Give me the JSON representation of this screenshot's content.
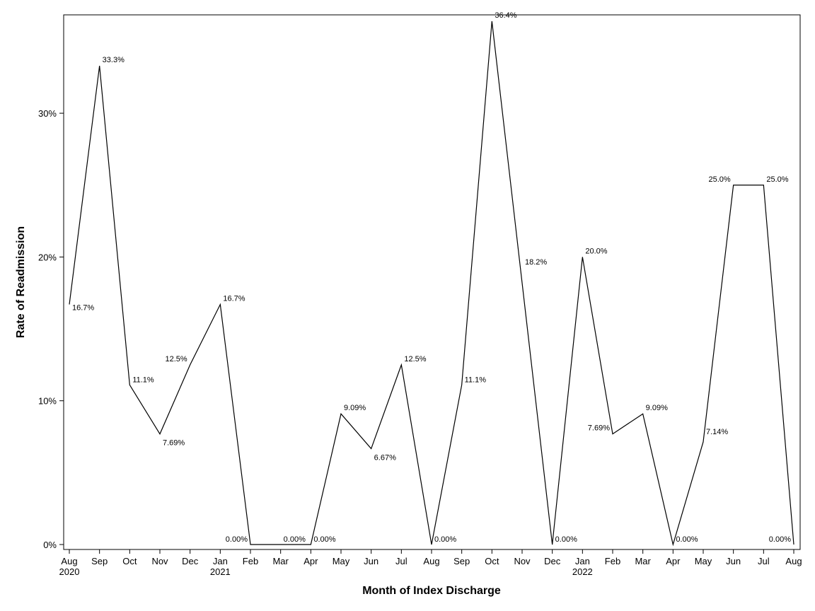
{
  "chart_data": {
    "type": "line",
    "xlabel": "Month of Index Discharge",
    "ylabel": "Rate of Readmission",
    "ylim": [
      0,
      36.4
    ],
    "y_ticks": [
      {
        "value": 0,
        "label": "0%"
      },
      {
        "value": 10,
        "label": "10%"
      },
      {
        "value": 20,
        "label": "20%"
      },
      {
        "value": 30,
        "label": "30%"
      }
    ],
    "grid": false,
    "x": [
      "Aug 2020",
      "Sep 2020",
      "Oct 2020",
      "Nov 2020",
      "Dec 2020",
      "Jan 2021",
      "Feb 2021",
      "Mar 2021",
      "Apr 2021",
      "May 2021",
      "Jun 2021",
      "Jul 2021",
      "Aug 2021",
      "Sep 2021",
      "Oct 2021",
      "Nov 2021",
      "Dec 2021",
      "Jan 2022",
      "Feb 2022",
      "Mar 2022",
      "Apr 2022",
      "May 2022",
      "Jun 2022",
      "Jul 2022",
      "Aug 2022"
    ],
    "x_ticks": [
      {
        "month": "Aug",
        "year": "2020"
      },
      {
        "month": "Sep",
        "year": ""
      },
      {
        "month": "Oct",
        "year": ""
      },
      {
        "month": "Nov",
        "year": ""
      },
      {
        "month": "Dec",
        "year": ""
      },
      {
        "month": "Jan",
        "year": "2021"
      },
      {
        "month": "Feb",
        "year": ""
      },
      {
        "month": "Mar",
        "year": ""
      },
      {
        "month": "Apr",
        "year": ""
      },
      {
        "month": "May",
        "year": ""
      },
      {
        "month": "Jun",
        "year": ""
      },
      {
        "month": "Jul",
        "year": ""
      },
      {
        "month": "Aug",
        "year": ""
      },
      {
        "month": "Sep",
        "year": ""
      },
      {
        "month": "Oct",
        "year": ""
      },
      {
        "month": "Nov",
        "year": ""
      },
      {
        "month": "Dec",
        "year": ""
      },
      {
        "month": "Jan",
        "year": "2022"
      },
      {
        "month": "Feb",
        "year": ""
      },
      {
        "month": "Mar",
        "year": ""
      },
      {
        "month": "Apr",
        "year": ""
      },
      {
        "month": "May",
        "year": ""
      },
      {
        "month": "Jun",
        "year": ""
      },
      {
        "month": "Jul",
        "year": ""
      },
      {
        "month": "Aug",
        "year": ""
      }
    ],
    "values": [
      16.7,
      33.3,
      11.1,
      7.69,
      12.5,
      16.7,
      0,
      0,
      0,
      9.09,
      6.67,
      12.5,
      0,
      11.1,
      36.4,
      18.2,
      0,
      20.0,
      7.69,
      9.09,
      0,
      7.14,
      25.0,
      25.0,
      0
    ],
    "data_labels": [
      "16.7%",
      "33.3%",
      "11.1%",
      "7.69%",
      "12.5%",
      "16.7%",
      "0.00%",
      "0.00%",
      "0.00%",
      "9.09%",
      "6.67%",
      "12.5%",
      "0.00%",
      "11.1%",
      "36.4%",
      "18.2%",
      "0.00%",
      "20.0%",
      "7.69%",
      "9.09%",
      "0.00%",
      "7.14%",
      "25.0%",
      "25.0%",
      "0.00%"
    ],
    "line_color": "#000000"
  }
}
